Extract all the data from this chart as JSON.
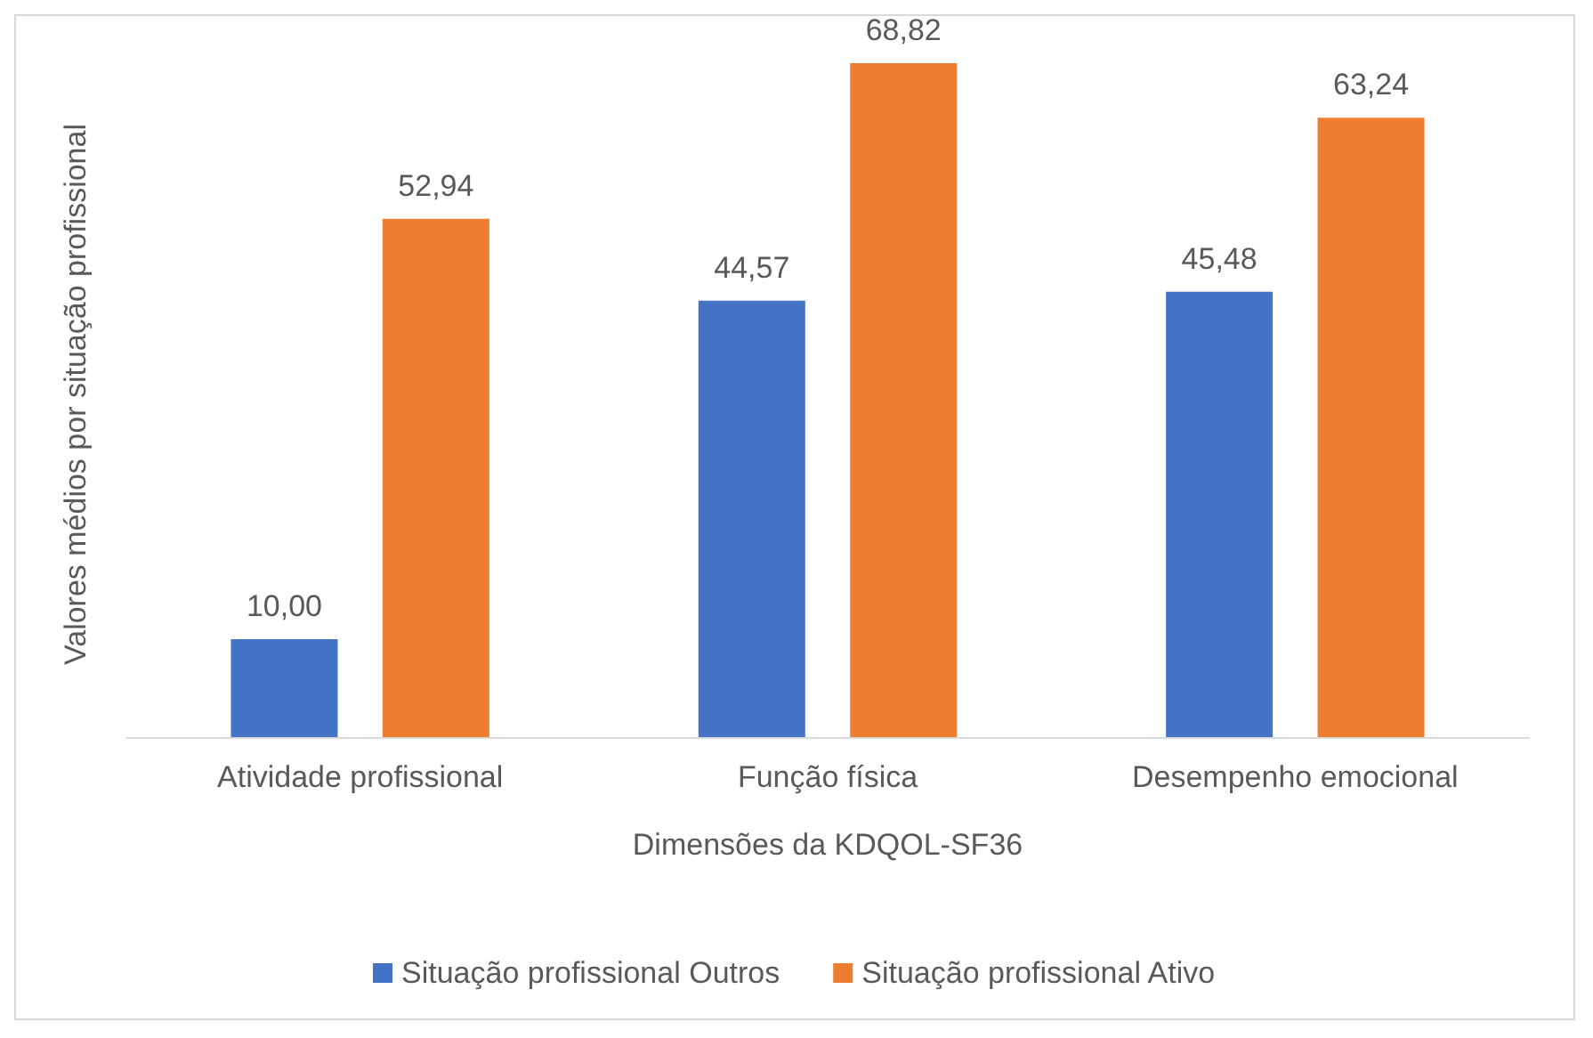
{
  "chart_data": {
    "type": "bar",
    "xlabel": "Dimensões da KDQOL-SF36",
    "ylabel": "Valores médios por situação profissional",
    "categories": [
      "Atividade profissional",
      "Função física",
      "Desempenho emocional"
    ],
    "series": [
      {
        "name": "Situação profissional Outros",
        "color": "#4472c4",
        "values": [
          10.0,
          44.57,
          45.48
        ],
        "value_labels": [
          "10,00",
          "44,57",
          "45,48"
        ]
      },
      {
        "name": "Situação profissional Ativo",
        "color": "#ed7d31",
        "values": [
          52.94,
          68.82,
          63.24
        ],
        "value_labels": [
          "52,94",
          "68,82",
          "63,24"
        ]
      }
    ],
    "tick_labels": "x",
    "grid": false,
    "legend": "bottom"
  }
}
